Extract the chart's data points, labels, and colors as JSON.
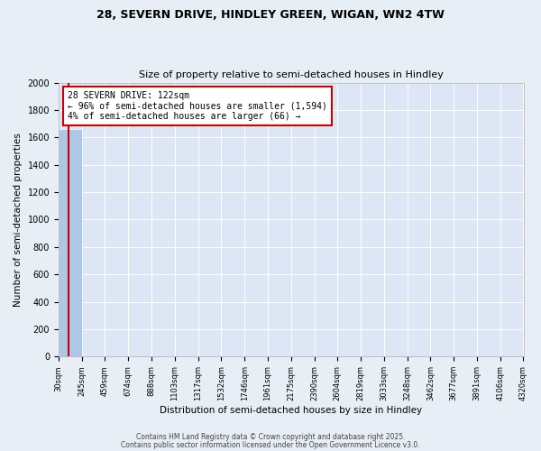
{
  "title1": "28, SEVERN DRIVE, HINDLEY GREEN, WIGAN, WN2 4TW",
  "title2": "Size of property relative to semi-detached houses in Hindley",
  "xlabel": "Distribution of semi-detached houses by size in Hindley",
  "ylabel": "Number of semi-detached properties",
  "bins": [
    30,
    245,
    459,
    674,
    888,
    1103,
    1317,
    1532,
    1746,
    1961,
    2175,
    2390,
    2604,
    2819,
    3033,
    3248,
    3462,
    3677,
    3891,
    4106,
    4320
  ],
  "counts": [
    1660,
    0,
    0,
    0,
    0,
    0,
    0,
    0,
    0,
    0,
    0,
    0,
    0,
    0,
    0,
    0,
    0,
    0,
    0,
    0
  ],
  "bar_color": "#aec6e8",
  "property_line_x": 122,
  "annotation_title": "28 SEVERN DRIVE: 122sqm",
  "annotation_line2": "← 96% of semi-detached houses are smaller (1,594)",
  "annotation_line3": "4% of semi-detached houses are larger (66) →",
  "annotation_box_color": "#cc0000",
  "ylim": [
    0,
    2000
  ],
  "yticks": [
    0,
    200,
    400,
    600,
    800,
    1000,
    1200,
    1400,
    1600,
    1800,
    2000
  ],
  "tick_labels": [
    "30sqm",
    "245sqm",
    "459sqm",
    "674sqm",
    "888sqm",
    "1103sqm",
    "1317sqm",
    "1532sqm",
    "1746sqm",
    "1961sqm",
    "2175sqm",
    "2390sqm",
    "2604sqm",
    "2819sqm",
    "3033sqm",
    "3248sqm",
    "3462sqm",
    "3677sqm",
    "3891sqm",
    "4106sqm",
    "4320sqm"
  ],
  "footer1": "Contains HM Land Registry data © Crown copyright and database right 2025.",
  "footer2": "Contains public sector information licensed under the Open Government Licence v3.0.",
  "bg_color": "#e8eef5",
  "plot_bg_color": "#dce6f4",
  "grid_color": "#ffffff",
  "title1_fontsize": 9,
  "title2_fontsize": 8,
  "xlabel_fontsize": 7.5,
  "ylabel_fontsize": 7.5,
  "tick_fontsize": 6,
  "annotation_fontsize": 7,
  "footer_fontsize": 5.5
}
